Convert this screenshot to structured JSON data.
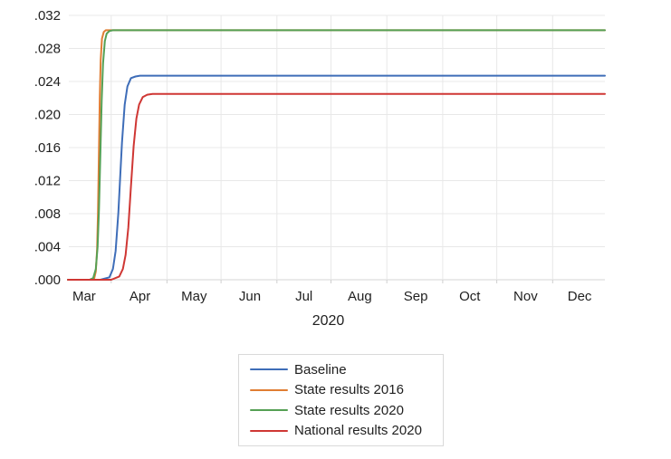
{
  "window": {
    "background": "#ffffff"
  },
  "chart_data": {
    "type": "line",
    "title": "",
    "xlabel": "2020",
    "ylabel": "",
    "x_unit": "day of year 2020",
    "x_domain_days": [
      52,
      350
    ],
    "ylim": [
      0,
      0.032
    ],
    "grid": true,
    "legend_position": "below-center",
    "grid_color": "#e8e8e8",
    "axis_line_color": "#d6d6d6",
    "tick_color": "#cfcfcf",
    "text_color": "#1f1f1f",
    "yticks": {
      "values": [
        0,
        0.004,
        0.008,
        0.012,
        0.016,
        0.02,
        0.024,
        0.028,
        0.032
      ],
      "labels": [
        ".000",
        ".004",
        ".008",
        ".012",
        ".016",
        ".020",
        ".024",
        ".028",
        ".032"
      ]
    },
    "xticks": {
      "month_labels": [
        {
          "label": "Mar",
          "day": 61
        },
        {
          "label": "Apr",
          "day": 92
        },
        {
          "label": "May",
          "day": 122
        },
        {
          "label": "Jun",
          "day": 153
        },
        {
          "label": "Jul",
          "day": 183
        },
        {
          "label": "Aug",
          "day": 214
        },
        {
          "label": "Sep",
          "day": 245
        },
        {
          "label": "Oct",
          "day": 275
        },
        {
          "label": "Nov",
          "day": 306
        },
        {
          "label": "Dec",
          "day": 336
        }
      ],
      "gridline_days": [
        76,
        107,
        137,
        168,
        198,
        229,
        260,
        290,
        321
      ]
    },
    "series": [
      {
        "id": "baseline",
        "name": "Baseline",
        "color": "#3e6db8",
        "final_value": 0.0247,
        "points": [
          [
            52,
            0
          ],
          [
            70,
            0
          ],
          [
            75,
            0.0003
          ],
          [
            77,
            0.0013
          ],
          [
            78.5,
            0.0035
          ],
          [
            80,
            0.0081
          ],
          [
            81,
            0.0124
          ],
          [
            82,
            0.0166
          ],
          [
            83.5,
            0.0212
          ],
          [
            85,
            0.0234
          ],
          [
            87,
            0.0244
          ],
          [
            89.5,
            0.0246
          ],
          [
            92,
            0.0247
          ],
          [
            350,
            0.0247
          ]
        ]
      },
      {
        "id": "state-2016",
        "name": "State results 2016",
        "color": "#e07d33",
        "final_value": 0.0302,
        "points": [
          [
            52,
            0
          ],
          [
            64,
            0
          ],
          [
            66.5,
            0.0001
          ],
          [
            67.5,
            0.001
          ],
          [
            68.2,
            0.0036
          ],
          [
            68.7,
            0.0081
          ],
          [
            69.2,
            0.0151
          ],
          [
            69.7,
            0.0221
          ],
          [
            70.2,
            0.0266
          ],
          [
            70.9,
            0.0292
          ],
          [
            71.9,
            0.03
          ],
          [
            73,
            0.0302
          ],
          [
            350,
            0.0302
          ]
        ]
      },
      {
        "id": "state-2020",
        "name": "State results 2020",
        "color": "#55a054",
        "final_value": 0.0302,
        "points": [
          [
            52,
            0
          ],
          [
            64,
            0
          ],
          [
            66,
            0.0002
          ],
          [
            67.5,
            0.0013
          ],
          [
            68.5,
            0.004
          ],
          [
            69.25,
            0.0085
          ],
          [
            70,
            0.0151
          ],
          [
            70.75,
            0.0217
          ],
          [
            71.5,
            0.0262
          ],
          [
            72.5,
            0.0289
          ],
          [
            73.5,
            0.0298
          ],
          [
            75,
            0.0301
          ],
          [
            77,
            0.0302
          ],
          [
            350,
            0.0302
          ]
        ]
      },
      {
        "id": "national-2020",
        "name": "National results 2020",
        "color": "#cf3734",
        "final_value": 0.0225,
        "points": [
          [
            52,
            0
          ],
          [
            76,
            0
          ],
          [
            80.5,
            0.0004
          ],
          [
            82.5,
            0.0013
          ],
          [
            84,
            0.003
          ],
          [
            85.5,
            0.0063
          ],
          [
            87,
            0.0113
          ],
          [
            88.5,
            0.0162
          ],
          [
            90,
            0.0195
          ],
          [
            91.5,
            0.0212
          ],
          [
            93.5,
            0.0221
          ],
          [
            96,
            0.0224
          ],
          [
            99,
            0.0225
          ],
          [
            350,
            0.0225
          ]
        ]
      }
    ]
  }
}
